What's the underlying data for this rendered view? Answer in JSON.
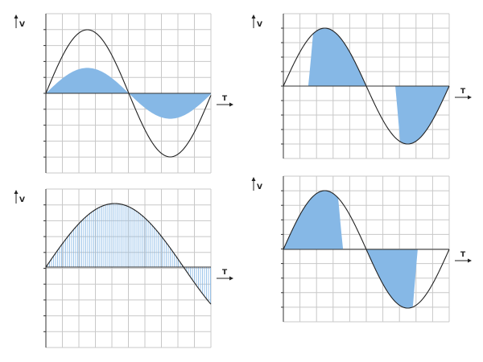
{
  "panels": [
    {
      "y_label": "V",
      "x_label": "T"
    },
    {
      "y_label": "V",
      "x_label": "T"
    },
    {
      "y_label": "V",
      "x_label": "T"
    },
    {
      "y_label": "V",
      "x_label": "T"
    }
  ]
}
